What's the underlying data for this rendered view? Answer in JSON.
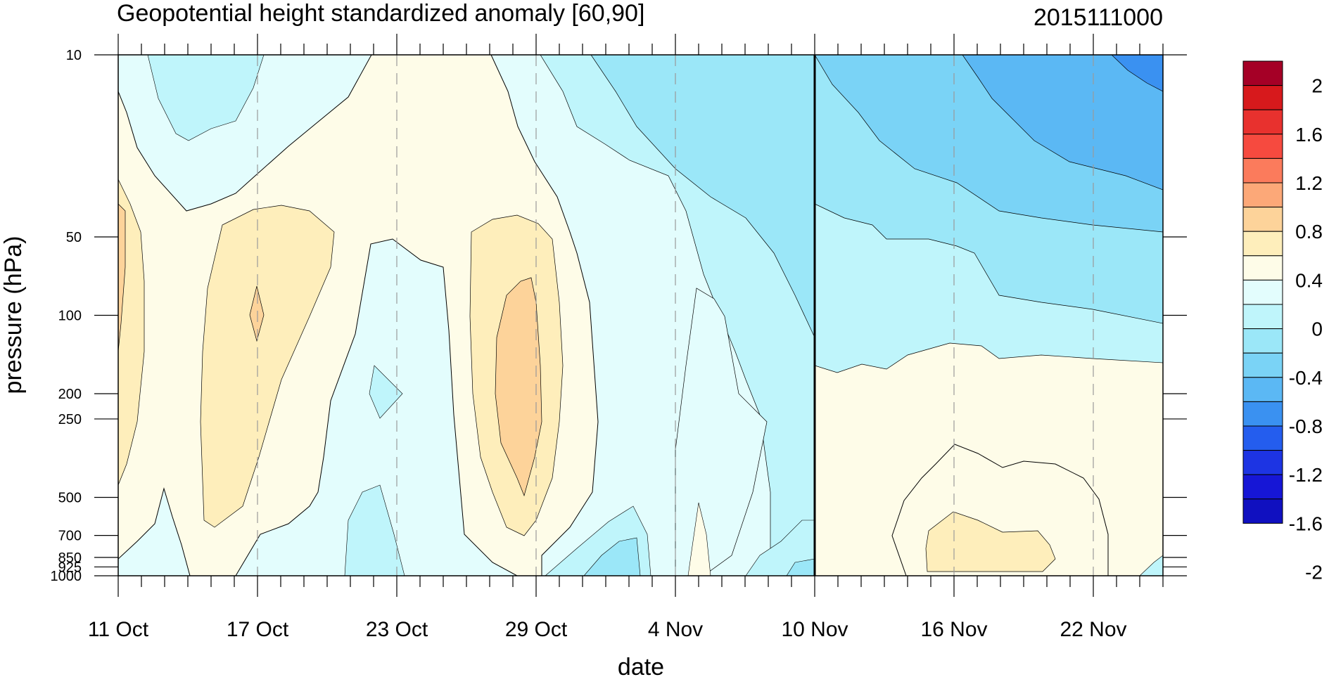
{
  "chart_data": {
    "type": "heatmap",
    "subtype": "filled-contour",
    "title": "Geopotential height standardized anomaly [60,90]",
    "title_right": "2015111000",
    "xlabel": "date",
    "ylabel": "pressure (hPa)",
    "x_ticks": [
      "11 Oct",
      "17 Oct",
      "23 Oct",
      "29 Oct",
      "4 Nov",
      "10 Nov",
      "16 Nov",
      "22 Nov"
    ],
    "x_range": [
      "11 Oct",
      "25 Nov"
    ],
    "y_ticks": [
      "10",
      "50",
      "100",
      "200",
      "250",
      "500",
      "700",
      "850",
      "925",
      "1000"
    ],
    "y_scale": "log",
    "y_range": [
      10,
      1000
    ],
    "y_inverted": true,
    "reference_line": "10 Nov",
    "gridlines": "dashed vertical at date ticks",
    "colorbar_labels": [
      "2",
      "1.6",
      "1.2",
      "0.8",
      "0.4",
      "0",
      "-0.4",
      "-0.8",
      "-1.2",
      "-1.6",
      "-2"
    ],
    "colorbar_colors": [
      "#a50026",
      "#d7191c",
      "#e8312e",
      "#f64a3f",
      "#fb7b5c",
      "#fca878",
      "#fdd39a",
      "#feeebb",
      "#fefce8",
      "#e3fdfd",
      "#bff5fb",
      "#9be7f8",
      "#7ad3f6",
      "#5bb8f4",
      "#3a91f1",
      "#245dee",
      "#1d34e3",
      "#1616d6",
      "#1010c0"
    ],
    "regions": [
      {
        "level": "0 to 0.4",
        "color": "#fefce8",
        "points": [
          [
            "11 Oct",
            12
          ],
          [
            "13 Oct",
            10
          ],
          [
            "22 Oct",
            10
          ],
          [
            "23 Oct",
            40
          ],
          [
            "27 Oct",
            60
          ],
          [
            "29 Oct",
            1000
          ],
          [
            "11 Oct",
            1000
          ]
        ]
      },
      {
        "level": "0.4 to 0.8",
        "color": "#feeebb",
        "points": [
          [
            "15 Oct",
            50
          ],
          [
            "17 Oct",
            40
          ],
          [
            "20 Oct",
            50
          ],
          [
            "18 Oct",
            300
          ],
          [
            "16 Oct",
            400
          ],
          [
            "15 Oct",
            300
          ]
        ]
      },
      {
        "level": "0.4 to 0.8",
        "color": "#feeebb",
        "points": [
          [
            "26 Oct",
            50
          ],
          [
            "28 Oct",
            45
          ],
          [
            "30 Oct",
            60
          ],
          [
            "30 Oct",
            400
          ],
          [
            "28 Oct",
            600
          ],
          [
            "26 Oct",
            250
          ]
        ]
      },
      {
        "level": "0.8 to 1.2",
        "color": "#fdd39a",
        "points": [
          [
            "28 Oct",
            120
          ],
          [
            "29 Oct",
            80
          ],
          [
            "30 Oct",
            150
          ],
          [
            "29 Oct",
            400
          ],
          [
            "27 Oct",
            300
          ]
        ]
      },
      {
        "level": "-0.4 to 0",
        "color": "#e3fdfd",
        "points": [
          [
            "30 Oct",
            10
          ],
          [
            "10 Nov",
            10
          ],
          [
            "10 Nov",
            1000
          ],
          [
            "30 Oct",
            1000
          ]
        ]
      },
      {
        "level": "-0.4 to -0.8",
        "color": "#9be7f8",
        "points": [
          [
            "3 Nov",
            10
          ],
          [
            "25 Nov",
            10
          ],
          [
            "25 Nov",
            150
          ],
          [
            "10 Nov",
            150
          ]
        ]
      },
      {
        "level": "-0.8 to -1.2",
        "color": "#7ad3f6",
        "points": [
          [
            "14 Nov",
            10
          ],
          [
            "25 Nov",
            10
          ],
          [
            "25 Nov",
            60
          ],
          [
            "16 Nov",
            50
          ]
        ]
      },
      {
        "level": "-1.2 to -1.6",
        "color": "#3a91f1",
        "points": [
          [
            "24 Nov",
            10
          ],
          [
            "25 Nov",
            10
          ],
          [
            "25 Nov",
            14
          ]
        ]
      },
      {
        "level": "0 to 0.4",
        "color": "#fefce8",
        "points": [
          [
            "14 Nov",
            600
          ],
          [
            "16 Nov",
            350
          ],
          [
            "21 Nov",
            450
          ],
          [
            "23 Nov",
            700
          ],
          [
            "23 Nov",
            1000
          ],
          [
            "14 Nov",
            1000
          ]
        ]
      }
    ]
  }
}
